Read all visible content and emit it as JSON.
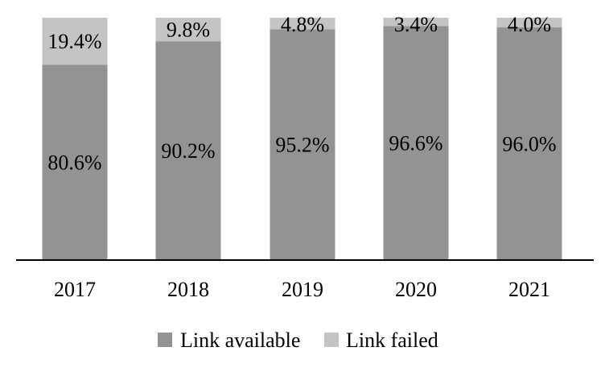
{
  "chart_data": {
    "type": "bar",
    "stacked": true,
    "percent_stacked": true,
    "categories": [
      "2017",
      "2018",
      "2019",
      "2020",
      "2021"
    ],
    "series": [
      {
        "name": "Link available",
        "values": [
          80.6,
          90.2,
          95.2,
          96.6,
          96.0
        ],
        "color": "#939393",
        "labels": [
          "80.6%",
          "90.2%",
          "95.2%",
          "96.6%",
          "96.0%"
        ]
      },
      {
        "name": "Link failed",
        "values": [
          19.4,
          9.8,
          4.8,
          3.4,
          4.0
        ],
        "color": "#c4c4c4",
        "labels": [
          "19.4%",
          "9.8%",
          "4.8%",
          "3.4%",
          "4.0%"
        ]
      }
    ],
    "ylim": [
      0,
      100
    ],
    "grid": false,
    "legend_position": "bottom"
  }
}
